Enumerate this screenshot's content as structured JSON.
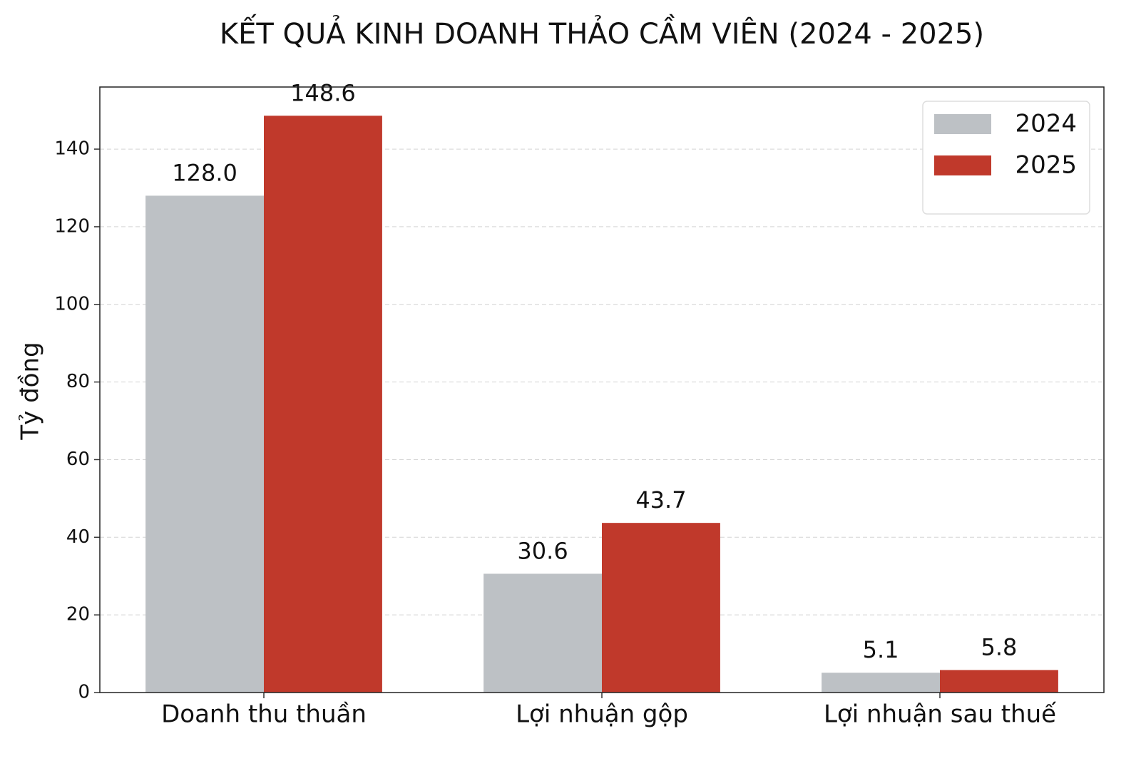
{
  "chart_data": {
    "type": "bar",
    "title": "KẾT QUẢ KINH DOANH THẢO CẦM VIÊN (2024 - 2025)",
    "y_label": "Tỷ đồng",
    "categories": [
      "Doanh thu thuần",
      "Lợi nhuận gộp",
      "Lợi nhuận sau thuế"
    ],
    "series": [
      {
        "name": "2024",
        "color": "#bdc1c5",
        "values": [
          128.0,
          30.6,
          5.1
        ],
        "value_labels": [
          "128.0",
          "30.6",
          "5.1"
        ]
      },
      {
        "name": "2025",
        "color": "#c0392b",
        "values": [
          148.6,
          43.7,
          5.8
        ],
        "value_labels": [
          "148.6",
          "43.7",
          "5.8"
        ]
      }
    ],
    "ylim": [
      0,
      156
    ],
    "yticks": [
      0,
      20,
      40,
      60,
      80,
      100,
      120,
      140
    ],
    "grid": true,
    "legend": "upper-right"
  }
}
